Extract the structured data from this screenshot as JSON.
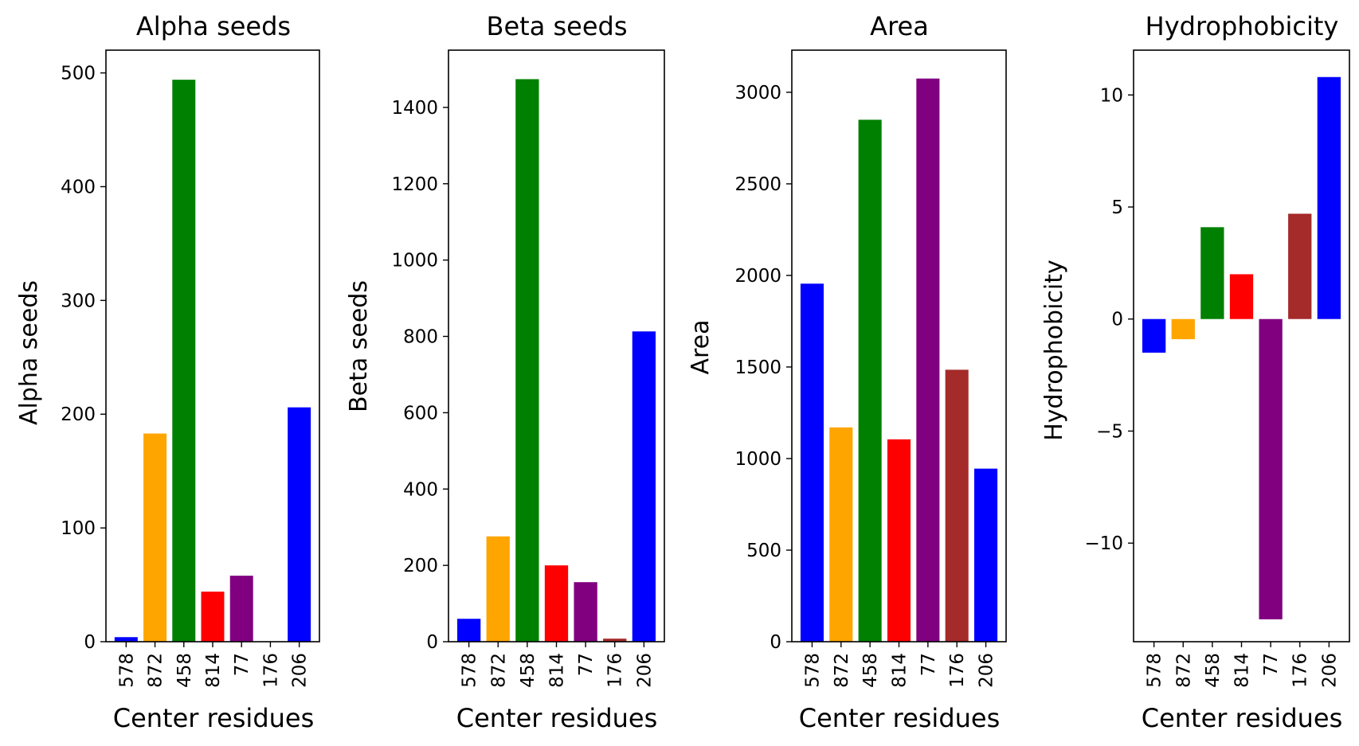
{
  "colors": [
    "#0000ff",
    "#ffa500",
    "#008000",
    "#ff0000",
    "#800080",
    "#a52a2a",
    "#0000ff"
  ],
  "chart_data": [
    {
      "type": "bar",
      "title": "Alpha seeds",
      "xlabel": "Center residues",
      "ylabel": "Alpha seeds",
      "categories": [
        "578",
        "872",
        "458",
        "814",
        "77",
        "176",
        "206"
      ],
      "values": [
        4,
        183,
        494,
        44,
        58,
        0,
        206
      ],
      "ylim": [
        0,
        520
      ],
      "yticks": [
        0,
        100,
        200,
        300,
        400,
        500
      ],
      "yticklabels": [
        "0",
        "100",
        "200",
        "300",
        "400",
        "500"
      ]
    },
    {
      "type": "bar",
      "title": "Beta seeds",
      "xlabel": "Center residues",
      "ylabel": "Beta seeds",
      "categories": [
        "578",
        "872",
        "458",
        "814",
        "77",
        "176",
        "206"
      ],
      "values": [
        60,
        276,
        1474,
        200,
        156,
        8,
        813
      ],
      "ylim": [
        0,
        1550
      ],
      "yticks": [
        0,
        200,
        400,
        600,
        800,
        1000,
        1200,
        1400
      ],
      "yticklabels": [
        "0",
        "200",
        "400",
        "600",
        "800",
        "1000",
        "1200",
        "1400"
      ]
    },
    {
      "type": "bar",
      "title": "Area",
      "xlabel": "Center residues",
      "ylabel": "Area",
      "categories": [
        "578",
        "872",
        "458",
        "814",
        "77",
        "176",
        "206"
      ],
      "values": [
        1955,
        1170,
        2850,
        1105,
        3075,
        1485,
        945
      ],
      "ylim": [
        0,
        3230
      ],
      "yticks": [
        0,
        500,
        1000,
        1500,
        2000,
        2500,
        3000
      ],
      "yticklabels": [
        "0",
        "500",
        "1000",
        "1500",
        "2000",
        "2500",
        "3000"
      ]
    },
    {
      "type": "bar",
      "title": "Hydrophobicity",
      "xlabel": "Center residues",
      "ylabel": "Hydrophobicity",
      "categories": [
        "578",
        "872",
        "458",
        "814",
        "77",
        "176",
        "206"
      ],
      "values": [
        -1.5,
        -0.9,
        4.1,
        2.0,
        -13.4,
        4.7,
        10.8
      ],
      "ylim": [
        -14.4,
        12.0
      ],
      "yticks": [
        -10,
        -5,
        0,
        5,
        10
      ],
      "yticklabels": [
        "−10",
        "−5",
        "0",
        "5",
        "10"
      ]
    }
  ]
}
